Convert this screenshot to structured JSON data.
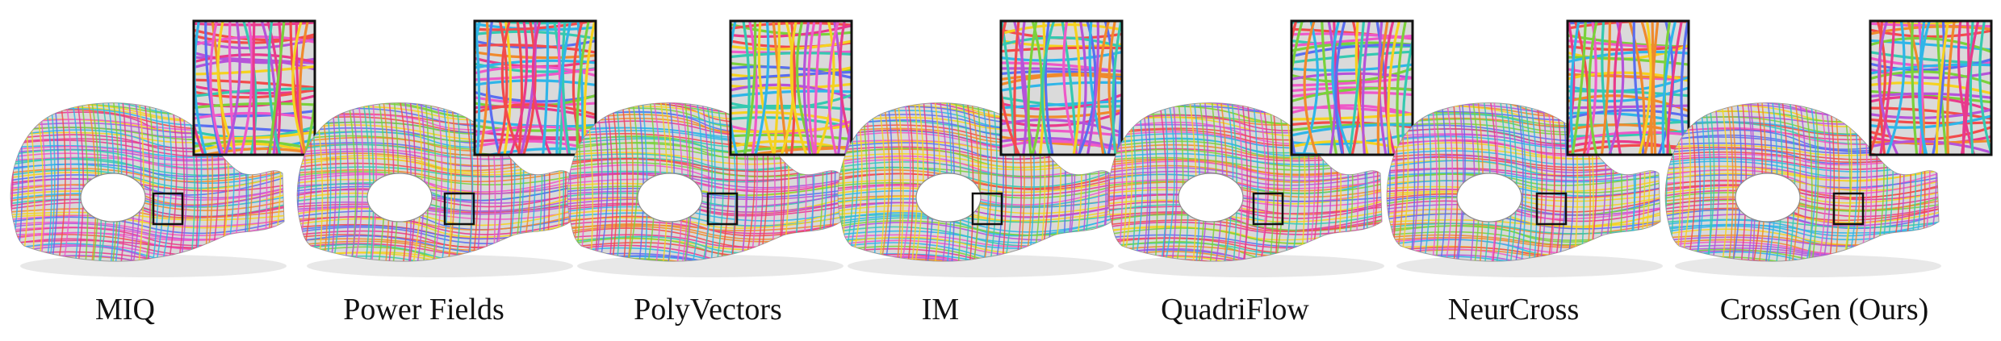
{
  "figure": {
    "methods": [
      {
        "label": "MIQ"
      },
      {
        "label": "Power Fields"
      },
      {
        "label": "PolyVectors"
      },
      {
        "label": "IM"
      },
      {
        "label": "QuadriFlow"
      },
      {
        "label": "NeurCross"
      },
      {
        "label": "CrossGen (Ours)"
      }
    ],
    "stroke_palette": [
      "#e83a8c",
      "#f24b4b",
      "#2fb5e8",
      "#7ad13b",
      "#f5d21f",
      "#b553d9",
      "#35c9b0",
      "#f08a2c",
      "#5a6ef0",
      "#ee58c8"
    ]
  }
}
